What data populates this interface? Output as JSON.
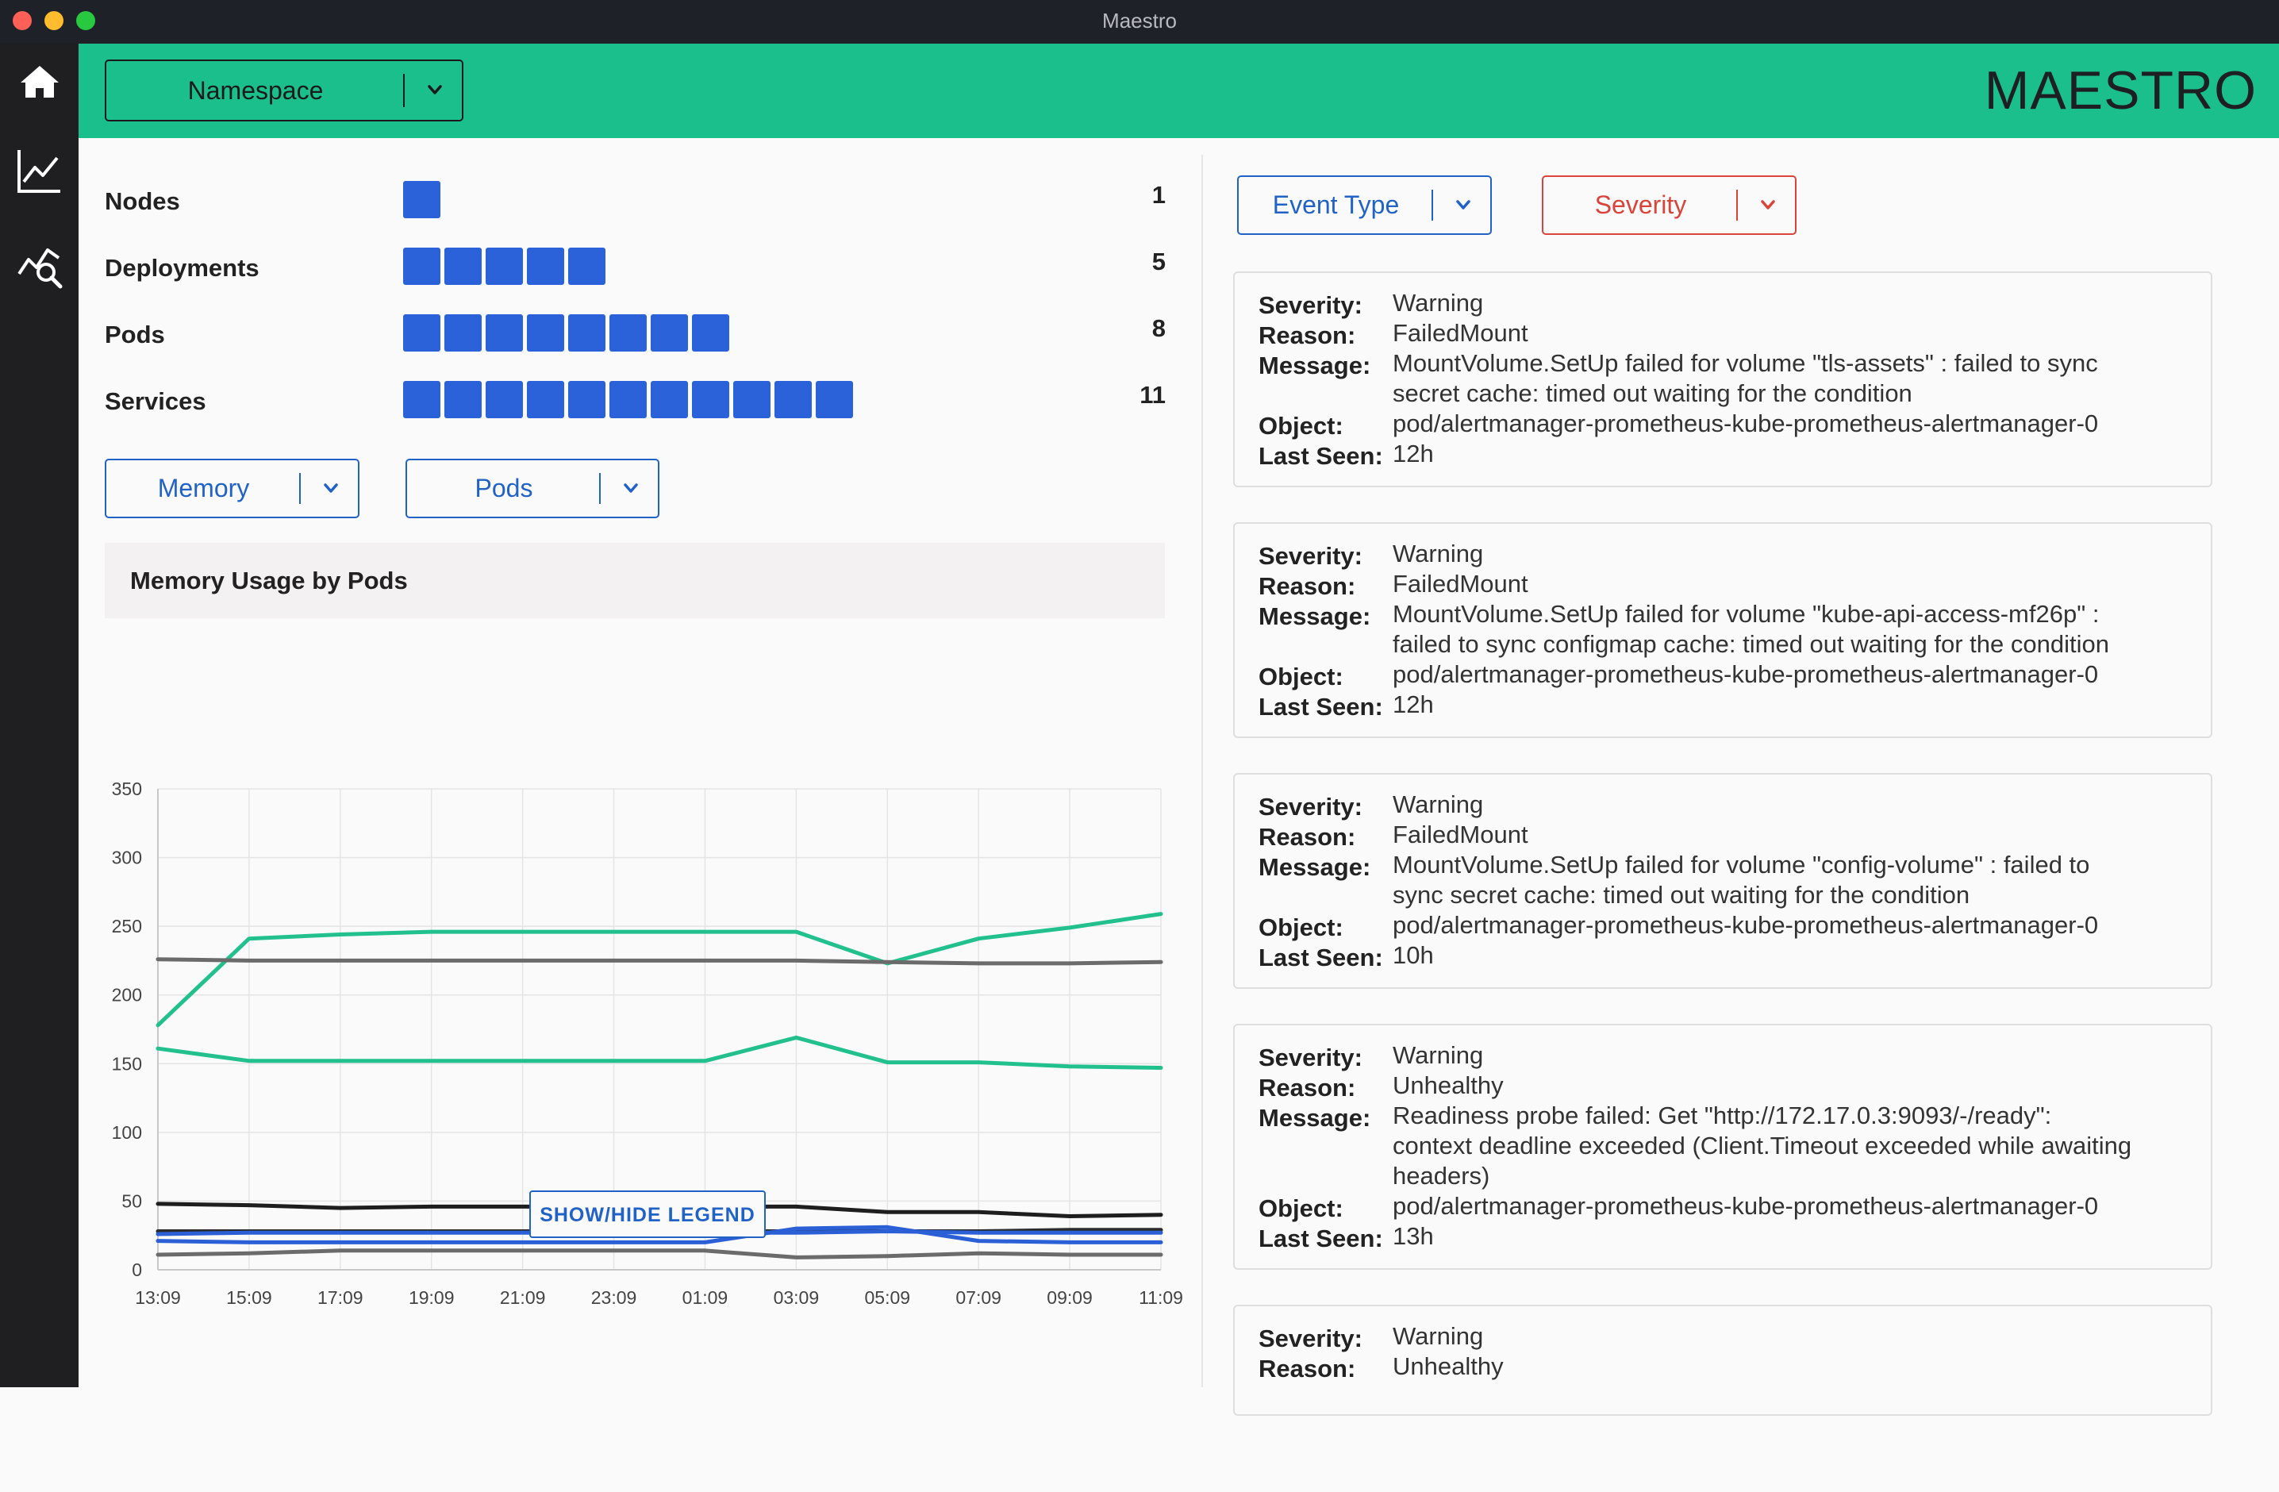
{
  "window": {
    "title": "Maestro"
  },
  "brand": "MAESTRO",
  "sidebar": {
    "items": [
      {
        "icon": "home-icon"
      },
      {
        "icon": "line-chart-icon"
      },
      {
        "icon": "chart-search-icon"
      }
    ]
  },
  "header": {
    "namespace_label": "Namespace"
  },
  "stats": [
    {
      "label": "Nodes",
      "count": "1"
    },
    {
      "label": "Deployments",
      "count": "5"
    },
    {
      "label": "Pods",
      "count": "8"
    },
    {
      "label": "Services",
      "count": "11"
    }
  ],
  "controls": {
    "metric_label": "Memory",
    "scope_label": "Pods"
  },
  "chart": {
    "title": "Memory Usage by Pods",
    "legend_button": "SHOW/HIDE LEGEND"
  },
  "chart_data": {
    "type": "line",
    "title": "Memory Usage by Pods",
    "x": [
      "13:09",
      "15:09",
      "17:09",
      "19:09",
      "21:09",
      "23:09",
      "01:09",
      "03:09",
      "05:09",
      "07:09",
      "09:09",
      "11:09"
    ],
    "y_ticks": [
      0,
      50,
      100,
      150,
      200,
      250,
      300,
      350
    ],
    "ylim": [
      0,
      350
    ],
    "grid": true,
    "series": [
      {
        "color": "#22c08d",
        "values": [
          178,
          241,
          244,
          246,
          246,
          246,
          246,
          246,
          223,
          241,
          249,
          259
        ]
      },
      {
        "color": "#6b6b6b",
        "values": [
          226,
          225,
          225,
          225,
          225,
          225,
          225,
          225,
          224,
          223,
          223,
          224
        ]
      },
      {
        "color": "#22c08d",
        "values": [
          161,
          152,
          152,
          152,
          152,
          152,
          152,
          169,
          151,
          151,
          148,
          147
        ]
      },
      {
        "color": "#1e1e1e",
        "values": [
          48,
          47,
          45,
          46,
          46,
          46,
          46,
          46,
          42,
          42,
          39,
          40
        ]
      },
      {
        "color": "#2b2b2b",
        "values": [
          28,
          28,
          28,
          28,
          28,
          28,
          28,
          28,
          28,
          28,
          29,
          29
        ]
      },
      {
        "color": "#2b5fd6",
        "values": [
          26,
          27,
          27,
          27,
          27,
          27,
          27,
          27,
          28,
          27,
          27,
          27
        ]
      },
      {
        "color": "#2b5fd6",
        "values": [
          21,
          20,
          20,
          20,
          20,
          20,
          20,
          30,
          31,
          21,
          20,
          20
        ]
      },
      {
        "color": "#6b6b6b",
        "values": [
          11,
          12,
          14,
          14,
          14,
          14,
          14,
          9,
          10,
          12,
          11,
          11
        ]
      }
    ]
  },
  "filters": {
    "event_type_label": "Event Type",
    "severity_label": "Severity"
  },
  "event_fields": {
    "severity": "Severity:",
    "reason": "Reason:",
    "message": "Message:",
    "object": "Object:",
    "last_seen": "Last Seen:"
  },
  "events": [
    {
      "severity": "Warning",
      "reason": "FailedMount",
      "message_lines": [
        "MountVolume.SetUp failed for volume \"tls-assets\" : failed to sync",
        "secret cache: timed out waiting for the condition"
      ],
      "object": "pod/alertmanager-prometheus-kube-prometheus-alertmanager-0",
      "last_seen": "12h"
    },
    {
      "severity": "Warning",
      "reason": "FailedMount",
      "message_lines": [
        "MountVolume.SetUp failed for volume \"kube-api-access-mf26p\" :",
        "failed to sync configmap cache: timed out waiting for the condition"
      ],
      "object": "pod/alertmanager-prometheus-kube-prometheus-alertmanager-0",
      "last_seen": "12h"
    },
    {
      "severity": "Warning",
      "reason": "FailedMount",
      "message_lines": [
        "MountVolume.SetUp failed for volume \"config-volume\" : failed to",
        "sync secret cache: timed out waiting for the condition"
      ],
      "object": "pod/alertmanager-prometheus-kube-prometheus-alertmanager-0",
      "last_seen": "10h"
    },
    {
      "severity": "Warning",
      "reason": "Unhealthy",
      "message_lines": [
        "Readiness probe failed: Get \"http://172.17.0.3:9093/-/ready\":",
        "context deadline exceeded (Client.Timeout exceeded while awaiting",
        "headers)"
      ],
      "object": "pod/alertmanager-prometheus-kube-prometheus-alertmanager-0",
      "last_seen": "13h"
    },
    {
      "severity": "Warning",
      "reason": "Unhealthy"
    }
  ],
  "colors": {
    "accent": "#1abf8c",
    "sidebar": "#1f1f22",
    "primary": "#2162c7",
    "block": "#2b62d9",
    "severity": "#d9443a"
  }
}
